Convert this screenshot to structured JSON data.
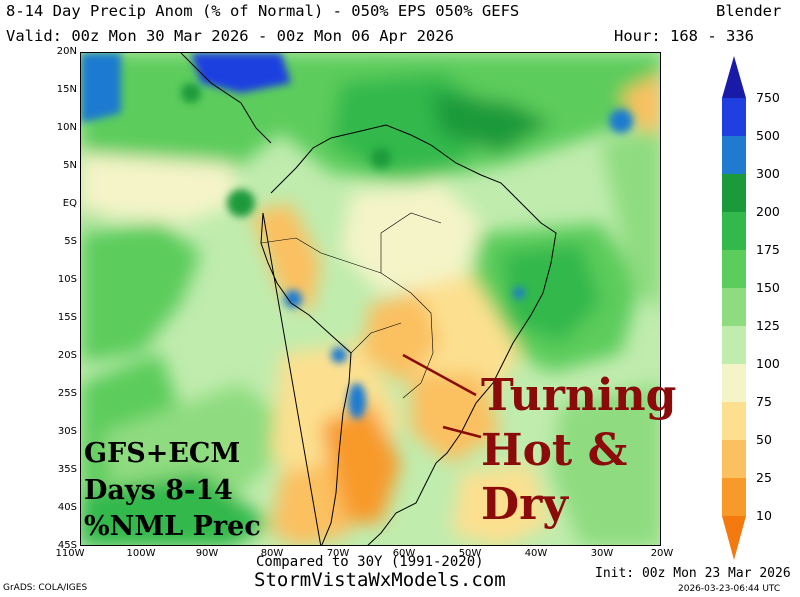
{
  "header": {
    "title": "8-14 Day Precip Anom (% of Normal) - 050% EPS 050% GEFS",
    "model": "Blender",
    "valid": "Valid: 00z Mon 30 Mar 2026 - 00z Mon 06 Apr 2026",
    "hour": "Hour: 168 - 336"
  },
  "map": {
    "lat_labels": [
      "20N",
      "15N",
      "10N",
      "5N",
      "EQ",
      "5S",
      "10S",
      "15S",
      "20S",
      "25S",
      "30S",
      "35S",
      "40S",
      "45S"
    ],
    "lon_labels": [
      "110W",
      "100W",
      "90W",
      "80W",
      "70W",
      "60W",
      "50W",
      "40W",
      "30W",
      "20W"
    ],
    "annotation_box": [
      "GFS+ECM",
      "Days 8-14",
      "%NML Prec"
    ],
    "annotation_big": [
      "Turning",
      "Hot &",
      "Dry"
    ],
    "annotation_color": "#8b0b0b"
  },
  "colorbar": {
    "labels": [
      "750",
      "500",
      "300",
      "200",
      "175",
      "150",
      "125",
      "100",
      "75",
      "50",
      "25",
      "10"
    ],
    "colors": [
      "#1a1aa8",
      "#1f3fe0",
      "#1f7ad0",
      "#1a9a3a",
      "#33b84c",
      "#5ccc5c",
      "#8fdc80",
      "#c0ecae",
      "#f4f4c8",
      "#fce090",
      "#fbc060",
      "#f89a2a",
      "#f47a10"
    ]
  },
  "footer": {
    "compared": "Compared to 30Y (1991-2020)",
    "site": "StormVistaWxModels.com",
    "init": "Init: 00z Mon 23 Mar 2026",
    "grads": "GrADS: COLA/IGES",
    "stamp": "2026-03-23-06:44 UTC"
  }
}
